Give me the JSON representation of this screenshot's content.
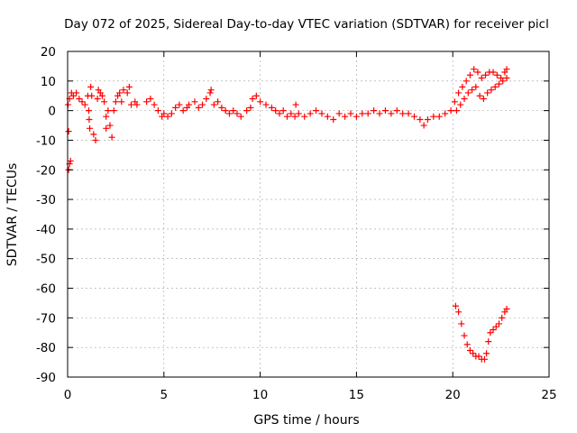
{
  "chart_data": {
    "type": "scatter",
    "title": "Day 072 of 2025, Sidereal Day-to-day VTEC variation (SDTVAR) for receiver picl",
    "xlabel": "GPS time / hours",
    "ylabel": "SDTVAR / TECUs",
    "xlim": [
      0,
      25
    ],
    "ylim": [
      -90,
      20
    ],
    "xticks": [
      0,
      5,
      10,
      15,
      20,
      25
    ],
    "yticks": [
      20,
      10,
      0,
      -10,
      -20,
      -30,
      -40,
      -50,
      -60,
      -70,
      -80,
      -90
    ],
    "grid": true,
    "marker": "+",
    "series": [
      {
        "color": "#ff0000",
        "points": [
          [
            0.02,
            2
          ],
          [
            0.05,
            -7
          ],
          [
            0.05,
            -20
          ],
          [
            0.1,
            -18
          ],
          [
            0.15,
            -17
          ],
          [
            0.1,
            4
          ],
          [
            0.2,
            6
          ],
          [
            0.3,
            5
          ],
          [
            0.45,
            6
          ],
          [
            0.6,
            4
          ],
          [
            0.75,
            3
          ],
          [
            0.9,
            2
          ],
          [
            1.05,
            5
          ],
          [
            1.1,
            0
          ],
          [
            1.12,
            -3
          ],
          [
            1.15,
            -6
          ],
          [
            1.2,
            8
          ],
          [
            1.25,
            5
          ],
          [
            1.35,
            -8
          ],
          [
            1.45,
            -10
          ],
          [
            1.55,
            4
          ],
          [
            1.6,
            7
          ],
          [
            1.7,
            6
          ],
          [
            1.8,
            5
          ],
          [
            1.9,
            3
          ],
          [
            2.0,
            -2
          ],
          [
            2.0,
            -6
          ],
          [
            2.1,
            0
          ],
          [
            2.2,
            -5
          ],
          [
            2.3,
            -9
          ],
          [
            2.4,
            0
          ],
          [
            2.5,
            3
          ],
          [
            2.6,
            5
          ],
          [
            2.7,
            6
          ],
          [
            2.8,
            3
          ],
          [
            2.9,
            7
          ],
          [
            3.1,
            6
          ],
          [
            3.2,
            8
          ],
          [
            3.3,
            2
          ],
          [
            3.5,
            3
          ],
          [
            3.6,
            2
          ],
          [
            4.1,
            3
          ],
          [
            4.3,
            4
          ],
          [
            4.5,
            2
          ],
          [
            4.7,
            0
          ],
          [
            4.9,
            -2
          ],
          [
            5.0,
            -1
          ],
          [
            5.2,
            -2
          ],
          [
            5.4,
            -1
          ],
          [
            5.6,
            1
          ],
          [
            5.8,
            2
          ],
          [
            6.0,
            0
          ],
          [
            6.2,
            1
          ],
          [
            6.3,
            2
          ],
          [
            6.6,
            3
          ],
          [
            6.8,
            1
          ],
          [
            7.0,
            2
          ],
          [
            7.2,
            4
          ],
          [
            7.4,
            6
          ],
          [
            7.45,
            7
          ],
          [
            7.6,
            2
          ],
          [
            7.8,
            3
          ],
          [
            8.0,
            1
          ],
          [
            8.2,
            0
          ],
          [
            8.4,
            -1
          ],
          [
            8.6,
            0
          ],
          [
            8.8,
            -1
          ],
          [
            9.0,
            -2
          ],
          [
            9.3,
            0
          ],
          [
            9.5,
            1
          ],
          [
            9.6,
            4
          ],
          [
            9.8,
            5
          ],
          [
            10.0,
            3
          ],
          [
            10.3,
            2
          ],
          [
            10.6,
            1
          ],
          [
            10.8,
            0
          ],
          [
            11.0,
            -1
          ],
          [
            11.2,
            0
          ],
          [
            11.4,
            -2
          ],
          [
            11.6,
            -1
          ],
          [
            11.8,
            -2
          ],
          [
            11.85,
            2
          ],
          [
            12.0,
            -1
          ],
          [
            12.3,
            -2
          ],
          [
            12.6,
            -1
          ],
          [
            12.9,
            0
          ],
          [
            13.2,
            -1
          ],
          [
            13.5,
            -2
          ],
          [
            13.8,
            -3
          ],
          [
            14.1,
            -1
          ],
          [
            14.4,
            -2
          ],
          [
            14.7,
            -1
          ],
          [
            15.0,
            -2
          ],
          [
            15.3,
            -1
          ],
          [
            15.6,
            -1
          ],
          [
            15.9,
            0
          ],
          [
            16.2,
            -1
          ],
          [
            16.5,
            0
          ],
          [
            16.8,
            -1
          ],
          [
            17.1,
            0
          ],
          [
            17.4,
            -1
          ],
          [
            17.7,
            -1
          ],
          [
            18.0,
            -2
          ],
          [
            18.3,
            -3
          ],
          [
            18.5,
            -5
          ],
          [
            18.7,
            -3
          ],
          [
            19.0,
            -2
          ],
          [
            19.3,
            -2
          ],
          [
            19.6,
            -1
          ],
          [
            19.9,
            0
          ],
          [
            20.1,
            3
          ],
          [
            20.3,
            6
          ],
          [
            20.5,
            8
          ],
          [
            20.7,
            10
          ],
          [
            20.9,
            12
          ],
          [
            21.1,
            14
          ],
          [
            21.3,
            13
          ],
          [
            21.5,
            11
          ],
          [
            21.7,
            12
          ],
          [
            21.9,
            13
          ],
          [
            22.1,
            13
          ],
          [
            22.3,
            12
          ],
          [
            22.5,
            11
          ],
          [
            22.7,
            13
          ],
          [
            22.8,
            14
          ],
          [
            20.2,
            0
          ],
          [
            20.4,
            2
          ],
          [
            20.6,
            4
          ],
          [
            20.8,
            6
          ],
          [
            21.0,
            7
          ],
          [
            21.2,
            8
          ],
          [
            21.4,
            5
          ],
          [
            21.6,
            4
          ],
          [
            21.8,
            6
          ],
          [
            22.0,
            7
          ],
          [
            22.2,
            8
          ],
          [
            22.4,
            9
          ],
          [
            22.6,
            10
          ],
          [
            22.8,
            11
          ],
          [
            20.15,
            -66
          ],
          [
            20.3,
            -68
          ],
          [
            20.45,
            -72
          ],
          [
            20.6,
            -76
          ],
          [
            20.75,
            -79
          ],
          [
            20.9,
            -81
          ],
          [
            21.05,
            -82
          ],
          [
            21.2,
            -83
          ],
          [
            21.35,
            -83
          ],
          [
            21.5,
            -84
          ],
          [
            21.65,
            -84
          ],
          [
            21.75,
            -82
          ],
          [
            21.85,
            -78
          ],
          [
            21.95,
            -75
          ],
          [
            22.1,
            -74
          ],
          [
            22.25,
            -73
          ],
          [
            22.4,
            -72
          ],
          [
            22.55,
            -70
          ],
          [
            22.7,
            -68
          ],
          [
            22.8,
            -67
          ]
        ]
      }
    ]
  }
}
